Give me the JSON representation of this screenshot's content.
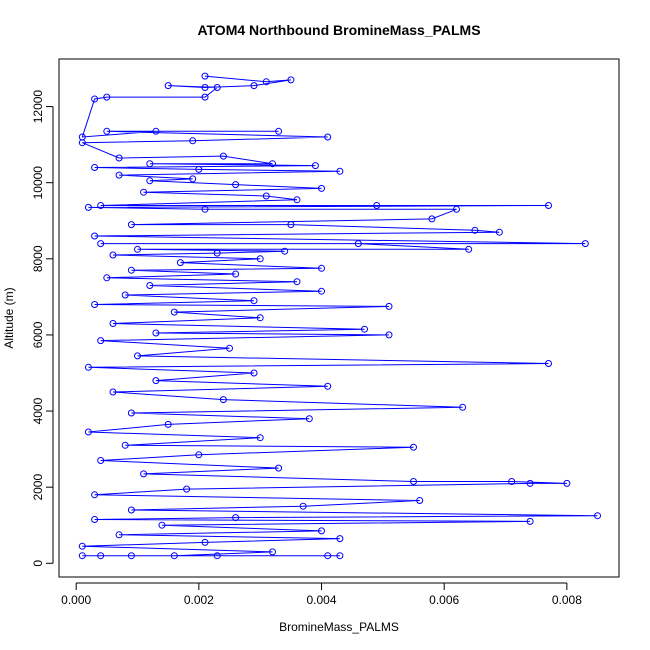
{
  "chart_data": {
    "type": "line",
    "title": "ATOM4 Northbound BromineMass_PALMS",
    "xlabel": "BromineMass_PALMS",
    "ylabel": "Altitude (m)",
    "xlim": [
      -0.00028,
      0.00885
    ],
    "ylim": [
      -360,
      13250
    ],
    "x_ticks": [
      0.0,
      0.002,
      0.004,
      0.006,
      0.008
    ],
    "x_tick_labels": [
      "0.000",
      "0.002",
      "0.004",
      "0.006",
      "0.008"
    ],
    "y_ticks": [
      0,
      2000,
      4000,
      6000,
      8000,
      10000,
      12000
    ],
    "y_tick_labels": [
      "0",
      "2000",
      "4000",
      "6000",
      "8000",
      "10000",
      "12000"
    ],
    "color": "#0000ff",
    "marker": "open-circle",
    "series": [
      {
        "points": [
          [
            0.0021,
            12800
          ],
          [
            0.0031,
            12650
          ],
          [
            0.0035,
            12700
          ],
          [
            0.0029,
            12550
          ],
          [
            0.0021,
            12500
          ],
          [
            0.0015,
            12550
          ],
          [
            0.0023,
            12500
          ],
          [
            0.0021,
            12250
          ],
          [
            0.0005,
            12250
          ],
          [
            0.0003,
            12200
          ],
          [
            0.0001,
            11200
          ],
          [
            0.0013,
            11350
          ],
          [
            0.0033,
            11350
          ],
          [
            0.0005,
            11350
          ],
          [
            0.0041,
            11200
          ],
          [
            0.0019,
            11100
          ],
          [
            0.0001,
            11050
          ],
          [
            0.0007,
            10650
          ],
          [
            0.0024,
            10700
          ],
          [
            0.0032,
            10500
          ],
          [
            0.0012,
            10500
          ],
          [
            0.0039,
            10450
          ],
          [
            0.0003,
            10400
          ],
          [
            0.002,
            10350
          ],
          [
            0.0043,
            10300
          ],
          [
            0.0007,
            10200
          ],
          [
            0.0019,
            10100
          ],
          [
            0.0012,
            10050
          ],
          [
            0.0026,
            9950
          ],
          [
            0.004,
            9850
          ],
          [
            0.0011,
            9750
          ],
          [
            0.0031,
            9650
          ],
          [
            0.0036,
            9550
          ],
          [
            0.0004,
            9400
          ],
          [
            0.0049,
            9400
          ],
          [
            0.0077,
            9400
          ],
          [
            0.0002,
            9350
          ],
          [
            0.0021,
            9300
          ],
          [
            0.0062,
            9300
          ],
          [
            0.0058,
            9050
          ],
          [
            0.0009,
            8900
          ],
          [
            0.0035,
            8900
          ],
          [
            0.0065,
            8750
          ],
          [
            0.0069,
            8700
          ],
          [
            0.0003,
            8600
          ],
          [
            0.0083,
            8400
          ],
          [
            0.0004,
            8400
          ],
          [
            0.0046,
            8400
          ],
          [
            0.0064,
            8250
          ],
          [
            0.001,
            8250
          ],
          [
            0.0034,
            8200
          ],
          [
            0.0023,
            8150
          ],
          [
            0.0006,
            8100
          ],
          [
            0.003,
            8000
          ],
          [
            0.0017,
            7900
          ],
          [
            0.004,
            7750
          ],
          [
            0.0009,
            7700
          ],
          [
            0.0026,
            7600
          ],
          [
            0.0005,
            7500
          ],
          [
            0.0036,
            7400
          ],
          [
            0.0012,
            7300
          ],
          [
            0.004,
            7150
          ],
          [
            0.0008,
            7050
          ],
          [
            0.0029,
            6900
          ],
          [
            0.0003,
            6800
          ],
          [
            0.0051,
            6750
          ],
          [
            0.0016,
            6600
          ],
          [
            0.003,
            6450
          ],
          [
            0.0006,
            6300
          ],
          [
            0.0047,
            6150
          ],
          [
            0.0013,
            6050
          ],
          [
            0.0051,
            6000
          ],
          [
            0.0004,
            5850
          ],
          [
            0.0025,
            5650
          ],
          [
            0.001,
            5450
          ],
          [
            0.0077,
            5250
          ],
          [
            0.0002,
            5150
          ],
          [
            0.0029,
            5000
          ],
          [
            0.0013,
            4800
          ],
          [
            0.0041,
            4650
          ],
          [
            0.0006,
            4500
          ],
          [
            0.0024,
            4300
          ],
          [
            0.0063,
            4100
          ],
          [
            0.0009,
            3950
          ],
          [
            0.0038,
            3800
          ],
          [
            0.0015,
            3650
          ],
          [
            0.0002,
            3450
          ],
          [
            0.003,
            3300
          ],
          [
            0.0008,
            3100
          ],
          [
            0.0055,
            3050
          ],
          [
            0.002,
            2850
          ],
          [
            0.0004,
            2700
          ],
          [
            0.0033,
            2500
          ],
          [
            0.0011,
            2350
          ],
          [
            0.0055,
            2150
          ],
          [
            0.0071,
            2150
          ],
          [
            0.008,
            2100
          ],
          [
            0.0074,
            2100
          ],
          [
            0.0018,
            1950
          ],
          [
            0.0003,
            1800
          ],
          [
            0.0056,
            1650
          ],
          [
            0.0037,
            1500
          ],
          [
            0.0009,
            1400
          ],
          [
            0.0085,
            1250
          ],
          [
            0.0026,
            1200
          ],
          [
            0.0003,
            1150
          ],
          [
            0.0074,
            1100
          ],
          [
            0.0014,
            1000
          ],
          [
            0.004,
            850
          ],
          [
            0.0007,
            750
          ],
          [
            0.0043,
            650
          ],
          [
            0.0021,
            550
          ],
          [
            0.0001,
            450
          ],
          [
            0.0032,
            300
          ],
          [
            0.0016,
            200
          ],
          [
            0.0009,
            200
          ],
          [
            0.0004,
            200
          ],
          [
            0.0041,
            200
          ],
          [
            0.0043,
            200
          ],
          [
            0.0023,
            200
          ],
          [
            0.0001,
            200
          ]
        ]
      }
    ],
    "grid": false
  }
}
